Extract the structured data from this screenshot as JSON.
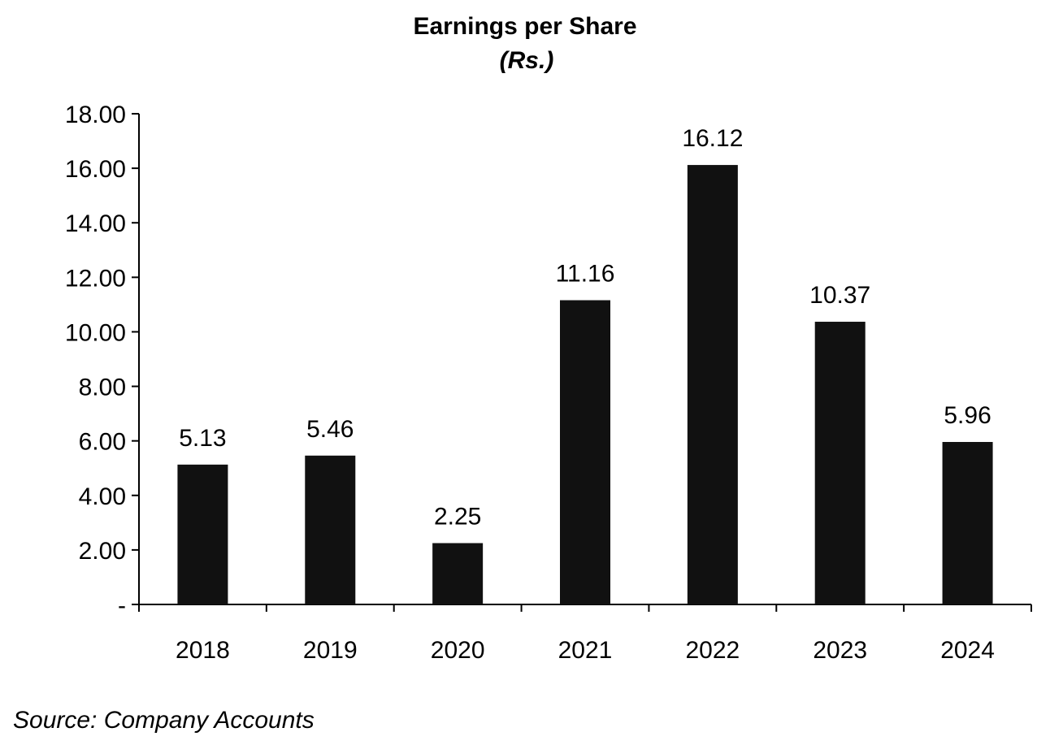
{
  "chart_data": {
    "type": "bar",
    "title": "Earnings per Share",
    "subtitle": "(Rs.)",
    "xlabel": "",
    "ylabel": "",
    "categories": [
      "2018",
      "2019",
      "2020",
      "2021",
      "2022",
      "2023",
      "2024"
    ],
    "values": [
      5.13,
      5.46,
      2.25,
      11.16,
      16.12,
      10.37,
      5.96
    ],
    "value_labels": [
      "5.13",
      "5.46",
      "2.25",
      "11.16",
      "16.12",
      "10.37",
      "5.96"
    ],
    "ylim": [
      0,
      18
    ],
    "y_ticks": [
      0,
      2,
      4,
      6,
      8,
      10,
      12,
      14,
      16,
      18
    ],
    "y_tick_labels": [
      "-",
      "2.00",
      "4.00",
      "6.00",
      "8.00",
      "10.00",
      "12.00",
      "14.00",
      "16.00",
      "18.00"
    ],
    "grid": false,
    "legend": "none",
    "bar_color": "#111111",
    "source": "Source: Company Accounts"
  }
}
